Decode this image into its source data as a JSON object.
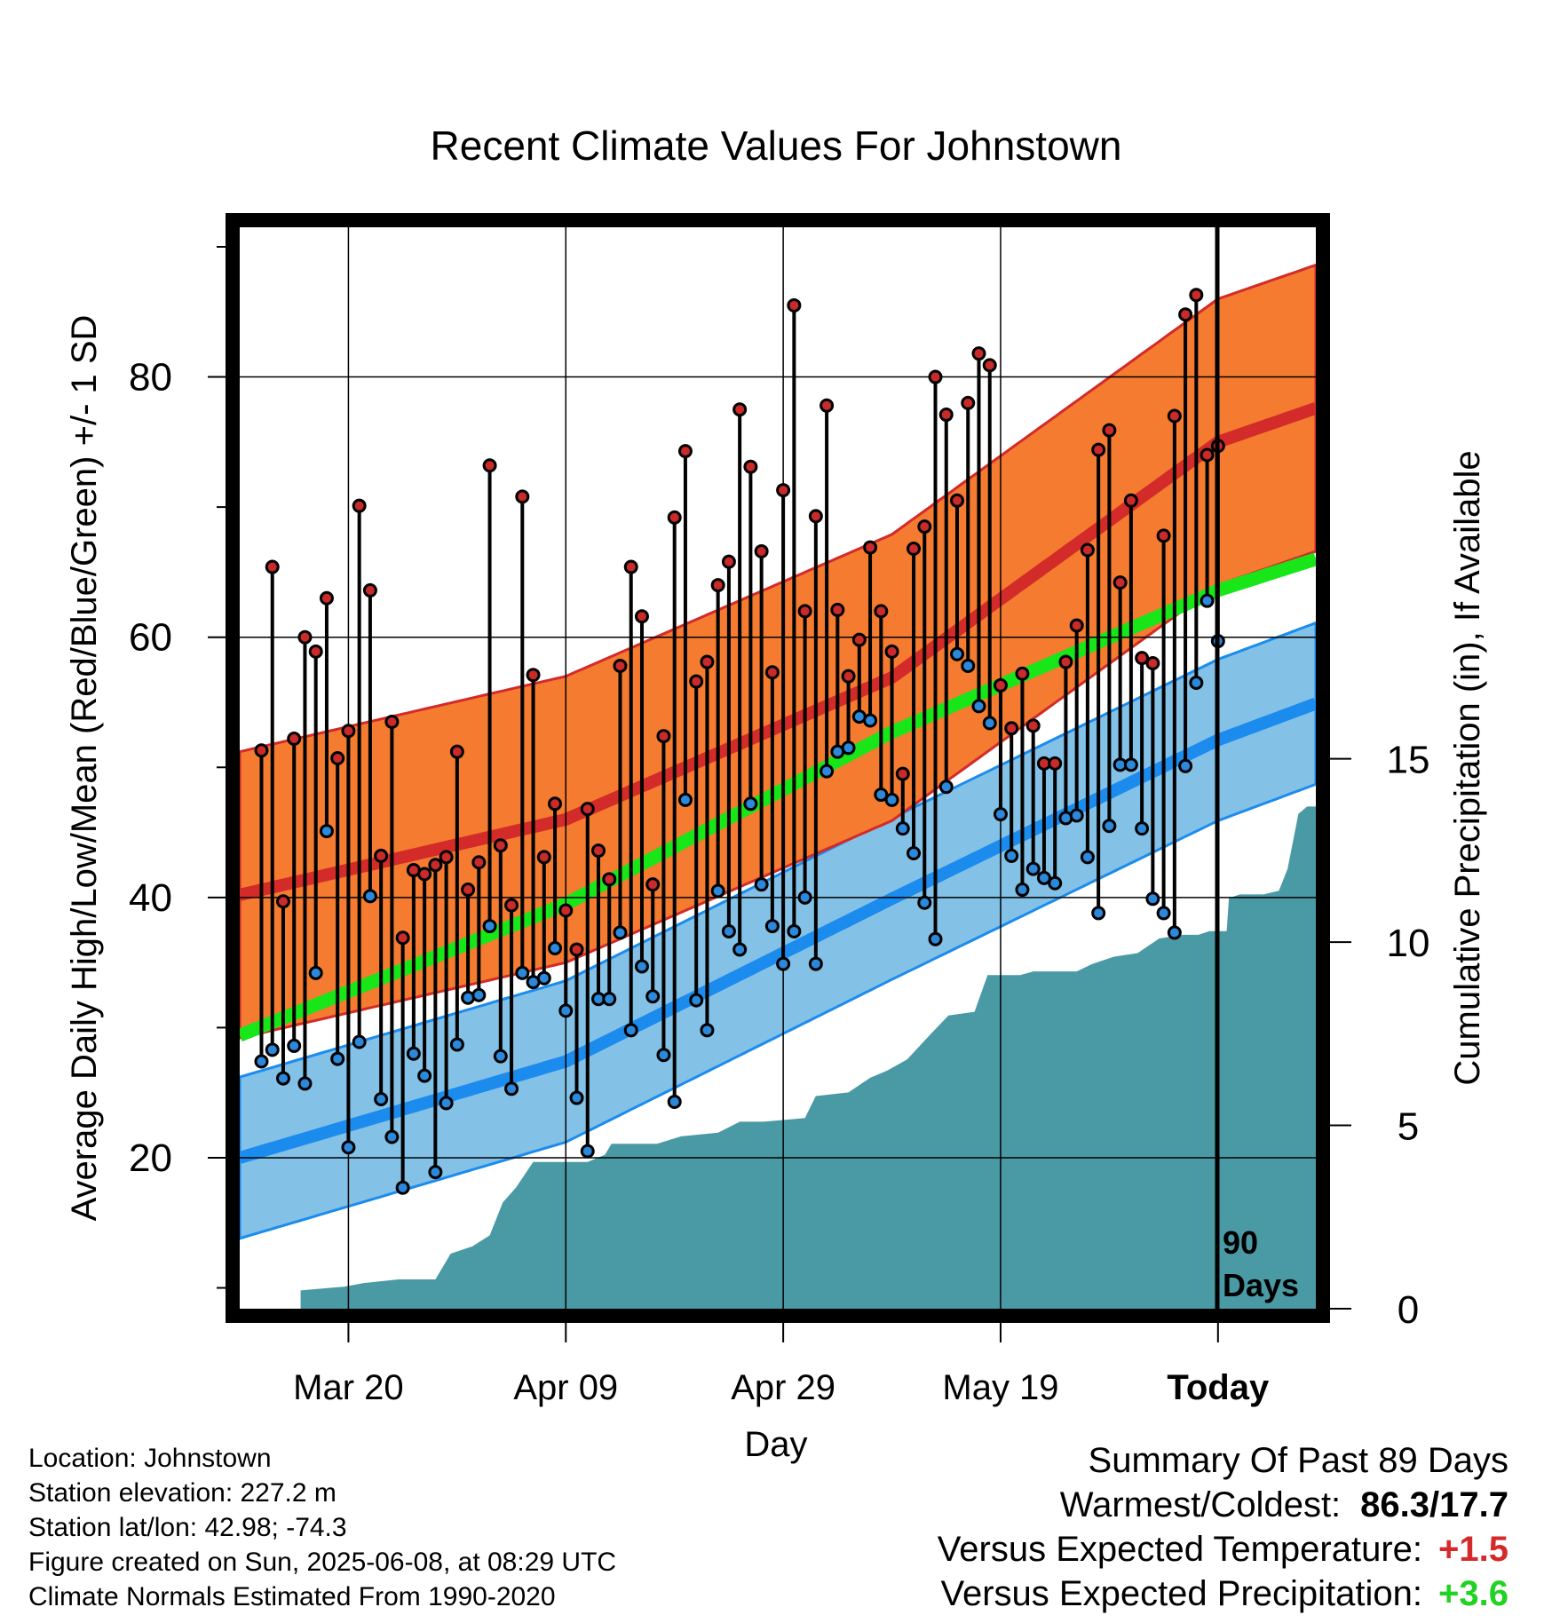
{
  "title": "Recent Climate Values For Johnstown",
  "chart_data": {
    "type": "line",
    "title": "Recent Climate Values For Johnstown",
    "xlabel": "Day",
    "ylabel": "Average Daily High/Low/Mean (Red/Blue/Green) +/- 1 SD",
    "y2label": "Cumulative Precipitation (in), If Available",
    "x_ticks": [
      "Mar 20",
      "Apr 09",
      "Apr 29",
      "May 19",
      "Today"
    ],
    "y_ticks": [
      20,
      40,
      60,
      80
    ],
    "y2_ticks": [
      0,
      5,
      10,
      15
    ],
    "xlim_days": [
      -90,
      9
    ],
    "ylim": [
      8.4,
      91.5
    ],
    "y2lim": [
      0,
      29.5
    ],
    "today_marker": "90\nDays",
    "colors": {
      "high_band": "#f47b2f",
      "high_mean": "#d32a2a",
      "low_band": "#84c1e6",
      "low_mean": "#1b8cee",
      "mean": "#19e619",
      "precip": "#4a9aa5",
      "high_marker": "#c92a2a",
      "low_marker": "#2b88db"
    },
    "normal_high": {
      "mean": [
        [
          -90,
          40.2
        ],
        [
          -60,
          46.0
        ],
        [
          -30,
          56.9
        ],
        [
          0,
          75.0
        ],
        [
          9,
          77.6
        ]
      ],
      "sd": 11.0
    },
    "normal_low": {
      "mean": [
        [
          -90,
          20.0
        ],
        [
          -60,
          27.4
        ],
        [
          -30,
          39.9
        ],
        [
          0,
          52.1
        ],
        [
          9,
          54.9
        ]
      ],
      "sd": 6.2
    },
    "normal_mean": [
      [
        -90,
        29.4
      ],
      [
        -60,
        39.5
      ],
      [
        -30,
        52.7
      ],
      [
        0,
        63.6
      ],
      [
        9,
        66.0
      ]
    ],
    "high": [
      51.3,
      65.4,
      39.7,
      52.2,
      60.0,
      58.9,
      63.0,
      50.7,
      52.8,
      70.1,
      63.6,
      43.2,
      53.5,
      36.9,
      42.1,
      41.8,
      42.5,
      43.1,
      51.2,
      40.6,
      42.7,
      73.2,
      44.0,
      39.4,
      70.8,
      57.1,
      43.1,
      47.2,
      39.0,
      36.0,
      46.8,
      43.6,
      41.4,
      57.8,
      65.4,
      61.6,
      41.0,
      52.4,
      69.2,
      74.3,
      56.6,
      58.1,
      64.0,
      65.8,
      77.5,
      73.1,
      66.6,
      57.3,
      71.3,
      85.5,
      62.0,
      69.3,
      77.8,
      62.1,
      57.0,
      59.8,
      66.9,
      62.0,
      58.9,
      49.5,
      66.8,
      68.5,
      80.0,
      77.1,
      70.5,
      78.0,
      81.8,
      80.9,
      56.3,
      53.0,
      57.2,
      53.2,
      50.3,
      50.3,
      58.1,
      60.9,
      66.7,
      74.4,
      75.9,
      64.2,
      70.5,
      58.4,
      58.0,
      67.8,
      77.0,
      84.8,
      86.3,
      74.0,
      74.7
    ],
    "low": [
      27.4,
      28.3,
      26.1,
      28.6,
      25.7,
      34.2,
      45.1,
      27.6,
      20.8,
      28.9,
      40.1,
      24.5,
      21.6,
      17.7,
      28.0,
      26.3,
      18.9,
      24.2,
      28.7,
      32.3,
      32.5,
      37.8,
      27.8,
      25.3,
      34.2,
      33.5,
      33.8,
      36.1,
      31.3,
      24.6,
      20.5,
      32.2,
      32.2,
      37.3,
      29.8,
      34.7,
      32.4,
      27.9,
      24.3,
      47.5,
      32.1,
      29.8,
      40.5,
      37.4,
      36.0,
      47.2,
      41.0,
      37.8,
      34.9,
      37.4,
      40.0,
      34.9,
      49.7,
      51.2,
      51.5,
      53.9,
      53.6,
      47.9,
      47.5,
      45.3,
      43.4,
      39.6,
      36.8,
      48.5,
      58.7,
      57.8,
      54.7,
      53.4,
      46.4,
      43.2,
      40.6,
      42.2,
      41.5,
      41.1,
      46.1,
      46.3,
      43.1,
      38.8,
      45.5,
      50.2,
      50.2,
      45.3,
      39.9,
      38.8,
      37.3,
      50.1,
      56.5,
      62.8,
      59.7
    ],
    "precip_cumulative": [
      [
        -90,
        0
      ],
      [
        -84.4,
        0
      ],
      [
        -84.4,
        0.5
      ],
      [
        -80.4,
        0.6
      ],
      [
        -78.6,
        0.7
      ],
      [
        -75.4,
        0.8
      ],
      [
        -72.0,
        0.8
      ],
      [
        -70.6,
        1.5
      ],
      [
        -68.6,
        1.7
      ],
      [
        -67.0,
        2.0
      ],
      [
        -65.8,
        2.9
      ],
      [
        -64.6,
        3.3
      ],
      [
        -63.0,
        4.0
      ],
      [
        -58.0,
        4.0
      ],
      [
        -56.4,
        4.2
      ],
      [
        -55.8,
        4.5
      ],
      [
        -51.6,
        4.5
      ],
      [
        -49.4,
        4.7
      ],
      [
        -46.0,
        4.8
      ],
      [
        -44.0,
        5.1
      ],
      [
        -41.8,
        5.1
      ],
      [
        -38.0,
        5.2
      ],
      [
        -37.0,
        5.8
      ],
      [
        -34.0,
        5.9
      ],
      [
        -32.0,
        6.3
      ],
      [
        -30.4,
        6.5
      ],
      [
        -28.6,
        6.8
      ],
      [
        -26.4,
        7.5
      ],
      [
        -24.8,
        8.0
      ],
      [
        -22.4,
        8.1
      ],
      [
        -21.2,
        9.1
      ],
      [
        -18.2,
        9.1
      ],
      [
        -17.0,
        9.2
      ],
      [
        -13.0,
        9.2
      ],
      [
        -11.6,
        9.4
      ],
      [
        -9.6,
        9.6
      ],
      [
        -7.4,
        9.7
      ],
      [
        -5.4,
        10.1
      ],
      [
        -3.2,
        10.2
      ],
      [
        -1.8,
        10.2
      ],
      [
        -0.8,
        10.3
      ],
      [
        0.8,
        10.3
      ],
      [
        1.0,
        11.2
      ],
      [
        2.0,
        11.3
      ],
      [
        3.2,
        11.3
      ],
      [
        4.2,
        11.3
      ],
      [
        5.6,
        11.4
      ],
      [
        6.4,
        12.0
      ],
      [
        7.4,
        13.5
      ],
      [
        8.2,
        13.7
      ],
      [
        9,
        13.7
      ]
    ],
    "summary": {
      "heading": "Summary Of Past 89 Days",
      "warmest_coldest_label": "Warmest/Coldest:",
      "warmest_coldest_value": "86.3/17.7",
      "temp_label": "Versus Expected Temperature:",
      "temp_value": "+1.5",
      "precip_label": "Versus Expected Precipitation:",
      "precip_value": "+3.6"
    }
  },
  "info": {
    "location": "Location: Johnstown",
    "elevation": "Station elevation: 227.2 m",
    "latlon": "Station lat/lon: 42.98; -74.3",
    "created": "Figure created on Sun, 2025-06-08, at 08:29 UTC",
    "normals": "Climate Normals Estimated From 1990-2020"
  }
}
